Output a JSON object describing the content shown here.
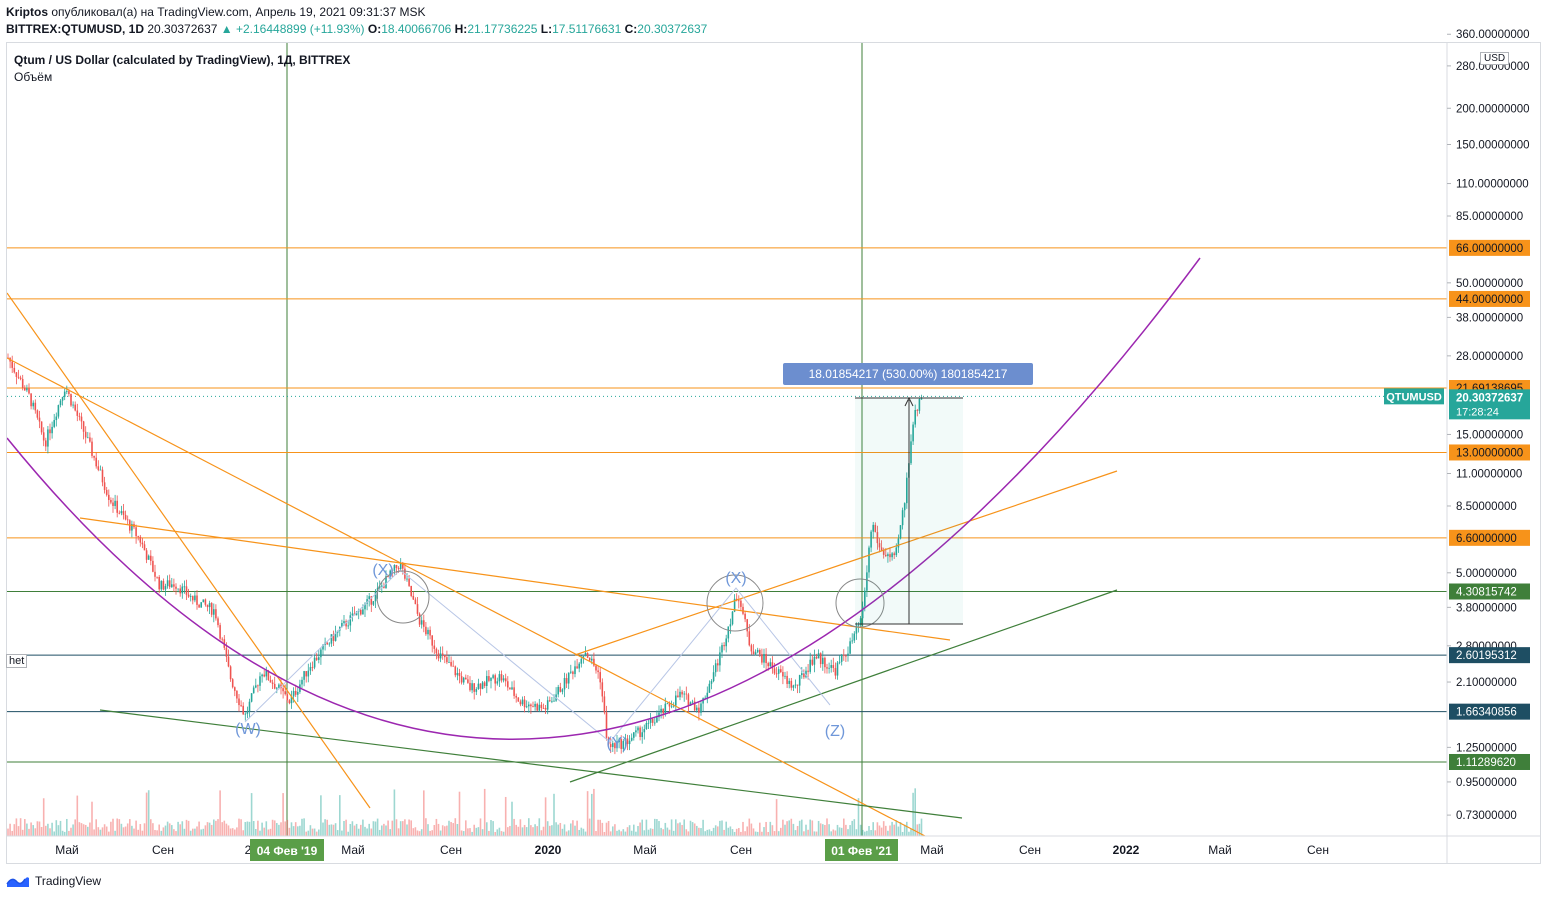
{
  "header": {
    "author": "Kriptos",
    "published": "опубликовал(а) на TradingView.com, Апрель 19, 2021 09:31:37 MSK",
    "symbol": "BITTREX:QTUMUSD, 1D",
    "last": "20.30372637",
    "change": "▲ +2.16448899 (+11.93%)",
    "open_label": "O:",
    "open": "18.40066706",
    "high_label": "H:",
    "high": "21.17736225",
    "low_label": "L:",
    "low": "17.51176631",
    "close_label": "C:",
    "close": "20.30372637"
  },
  "legend": {
    "title": "Qtum / US Dollar (calculated by TradingView), 1Д, BITTREX",
    "volume": "Объём"
  },
  "currency": "USD",
  "side_fragment": "het",
  "brand": "TradingView",
  "measure_label": "18.01854217 (530.00%) 1801854217",
  "price_axis": {
    "ticks": [
      "360.00000000",
      "280.00000000",
      "200.00000000",
      "150.00000000",
      "110.00000000",
      "85.00000000",
      "50.00000000",
      "38.00000000",
      "28.00000000",
      "15.00000000",
      "11.00000000",
      "8.50000000",
      "5.00000000",
      "3.80000000",
      "2.80000000",
      "2.10000000",
      "1.25000000",
      "0.95000000",
      "0.73000000"
    ],
    "tick_values": [
      360,
      280,
      200,
      150,
      110,
      85,
      50,
      38,
      28,
      15,
      11,
      8.5,
      5,
      3.8,
      2.8,
      2.1,
      1.25,
      0.95,
      0.73
    ],
    "levels": [
      {
        "label": "66.00000000",
        "value": 66,
        "color": "#f7931a",
        "kind": "orange"
      },
      {
        "label": "44.00000000",
        "value": 44,
        "color": "#f7931a",
        "kind": "orange"
      },
      {
        "label": "21.69138695",
        "value": 21.69,
        "color": "#f7931a",
        "kind": "orange"
      },
      {
        "label": "13.00000000",
        "value": 13,
        "color": "#f7931a",
        "kind": "orange"
      },
      {
        "label": "6.60000000",
        "value": 6.6,
        "color": "#f7931a",
        "kind": "orange"
      },
      {
        "label": "4.30815742",
        "value": 4.31,
        "color": "#3f7f3a",
        "kind": "green"
      },
      {
        "label": "2.60195312",
        "value": 2.6,
        "color": "#1e4e63",
        "kind": "teal"
      },
      {
        "label": "1.66340856",
        "value": 1.66,
        "color": "#1e4e63",
        "kind": "teal"
      },
      {
        "label": "1.11289620",
        "value": 1.113,
        "color": "#3f7f3a",
        "kind": "green"
      }
    ],
    "current": {
      "symbol": "QTUMUSD",
      "price": "20.30372637",
      "countdown": "17:28:24",
      "value": 20.3
    }
  },
  "time_axis": {
    "labels": [
      "Май",
      "Сен",
      "2",
      "Май",
      "Сен",
      "2020",
      "Май",
      "Сен",
      "Май",
      "Сен",
      "2022",
      "Май",
      "Сен"
    ],
    "highlighted": [
      "04 Фев '19",
      "01 Фев '21"
    ]
  },
  "wave_labels": [
    "(W)",
    "(X)",
    "(Y)",
    "(X)",
    "(Z)"
  ],
  "chart_data": {
    "type": "candlestick",
    "title": "Qtum / US Dollar (calculated by TradingView), 1Д, BITTREX",
    "ylabel": "USD",
    "yscale": "log",
    "ylim": [
      0.65,
      400
    ],
    "series": [
      {
        "name": "QTUMUSD close (approx.)",
        "dates": [
          "2018-03",
          "2018-04",
          "2018-05",
          "2018-06",
          "2018-07",
          "2018-08",
          "2018-09",
          "2018-10",
          "2018-11",
          "2018-12",
          "2019-01",
          "2019-02",
          "2019-03",
          "2019-04",
          "2019-05",
          "2019-06",
          "2019-07",
          "2019-08",
          "2019-09",
          "2019-10",
          "2019-11",
          "2019-12",
          "2020-01",
          "2020-02",
          "2020-03",
          "2020-04",
          "2020-05",
          "2020-06",
          "2020-07",
          "2020-08",
          "2020-09",
          "2020-10",
          "2020-11",
          "2020-12",
          "2021-01",
          "2021-02",
          "2021-03",
          "2021-04"
        ],
        "values": [
          28,
          16,
          24,
          15,
          9.5,
          6.5,
          4.5,
          4.3,
          3.0,
          1.7,
          2.3,
          2.0,
          2.4,
          3.2,
          3.8,
          5.5,
          3.6,
          2.6,
          2.0,
          1.8,
          2.1,
          1.7,
          2.3,
          2.8,
          1.3,
          1.6,
          1.8,
          2.0,
          2.3,
          4.3,
          2.7,
          2.3,
          2.2,
          3.0,
          2.5,
          6.0,
          5.5,
          20.3
        ]
      },
      {
        "name": "Объём",
        "type": "volume"
      }
    ],
    "horizontal_levels": [
      66,
      44,
      21.69138695,
      13,
      6.6,
      4.30815742,
      2.60195312,
      1.66340856,
      1.1128962
    ],
    "measurement": {
      "from": 3.4,
      "to": 21.4,
      "label": "18.01854217 (530.00%) 1801854217"
    },
    "grid": false
  }
}
